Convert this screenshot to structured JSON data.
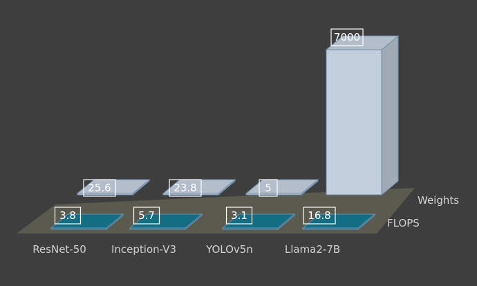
{
  "chart_data": {
    "type": "bar",
    "categories": [
      "ResNet-50",
      "Inception-V3",
      "YOLOv5n",
      "Llama2-7B"
    ],
    "series": [
      {
        "name": "FLOPS",
        "values": [
          3.8,
          5.7,
          3.1,
          16.8
        ],
        "value_labels": [
          "3.8",
          "5.7",
          "3.1",
          "16.8"
        ]
      },
      {
        "name": "Weights",
        "values": [
          25.6,
          23.8,
          5,
          7000
        ],
        "value_labels": [
          "25.6",
          "23.8",
          "5",
          "7000"
        ]
      }
    ],
    "title": "",
    "xlabel": "",
    "ylabel": "",
    "style": "3d-column",
    "colors": {
      "background": "#3e3e3e",
      "floor": "#5a5a4e",
      "flops": "#15788e",
      "weights": "#c3cfdc",
      "label_text": "#d0d0d0"
    }
  }
}
